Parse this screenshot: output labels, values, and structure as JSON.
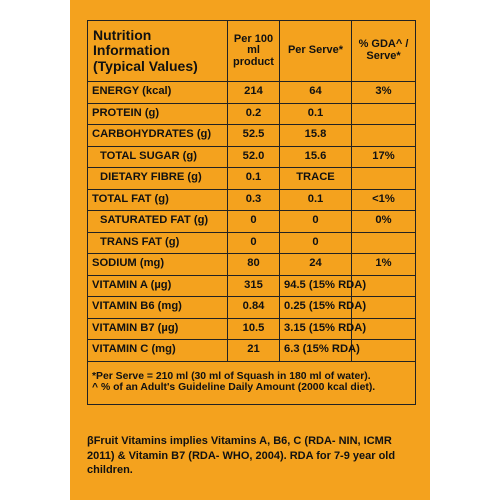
{
  "header": {
    "title": "Nutrition Information (Typical Values)",
    "col_per100": "Per 100 ml product",
    "col_perserve": "Per Serve*",
    "col_gda": "% GDA^ / Serve*"
  },
  "rows": [
    {
      "name": "ENERGY (kcal)",
      "per100": "214",
      "serve": "64",
      "gda": "3%"
    },
    {
      "name": "PROTEIN (g)",
      "per100": "0.2",
      "serve": "0.1",
      "gda": ""
    },
    {
      "name": "CARBOHYDRATES (g)",
      "per100": "52.5",
      "serve": "15.8",
      "gda": ""
    },
    {
      "name": "TOTAL SUGAR (g)",
      "per100": "52.0",
      "serve": "15.6",
      "gda": "17%"
    },
    {
      "name": "DIETARY FIBRE (g)",
      "per100": "0.1",
      "serve": "TRACE",
      "gda": ""
    },
    {
      "name": "TOTAL FAT (g)",
      "per100": "0.3",
      "serve": "0.1",
      "gda": "<1%"
    },
    {
      "name": "SATURATED FAT (g)",
      "per100": "0",
      "serve": "0",
      "gda": "0%"
    },
    {
      "name": "TRANS FAT (g)",
      "per100": "0",
      "serve": "0",
      "gda": ""
    },
    {
      "name": "SODIUM (mg)",
      "per100": "80",
      "serve": "24",
      "gda": "1%"
    },
    {
      "name": "VITAMIN A (µg)",
      "per100": "315",
      "serve": "94.5 (15% RDA)",
      "gda": ""
    },
    {
      "name": "VITAMIN B6 (mg)",
      "per100": "0.84",
      "serve": "0.25 (15% RDA)",
      "gda": ""
    },
    {
      "name": "VITAMIN B7 (µg)",
      "per100": "10.5",
      "serve": "3.15 (15% RDA)",
      "gda": ""
    },
    {
      "name": "VITAMIN C (mg)",
      "per100": "21",
      "serve": "6.3 (15% RDA)",
      "gda": ""
    }
  ],
  "superscript_mark": "β",
  "notes": {
    "serve_note": "*Per Serve = 210 ml (30 ml of Squash in 180 ml of water).",
    "gda_note": "^ % of an Adult's Guideline Daily Amount (2000 kcal diet)."
  },
  "footer": {
    "text": "βFruit Vitamins implies Vitamins A, B6, C (RDA- NIN, ICMR 2011) & Vitamin B7 (RDA- WHO, 2004). RDA for 7-9 year old children."
  }
}
